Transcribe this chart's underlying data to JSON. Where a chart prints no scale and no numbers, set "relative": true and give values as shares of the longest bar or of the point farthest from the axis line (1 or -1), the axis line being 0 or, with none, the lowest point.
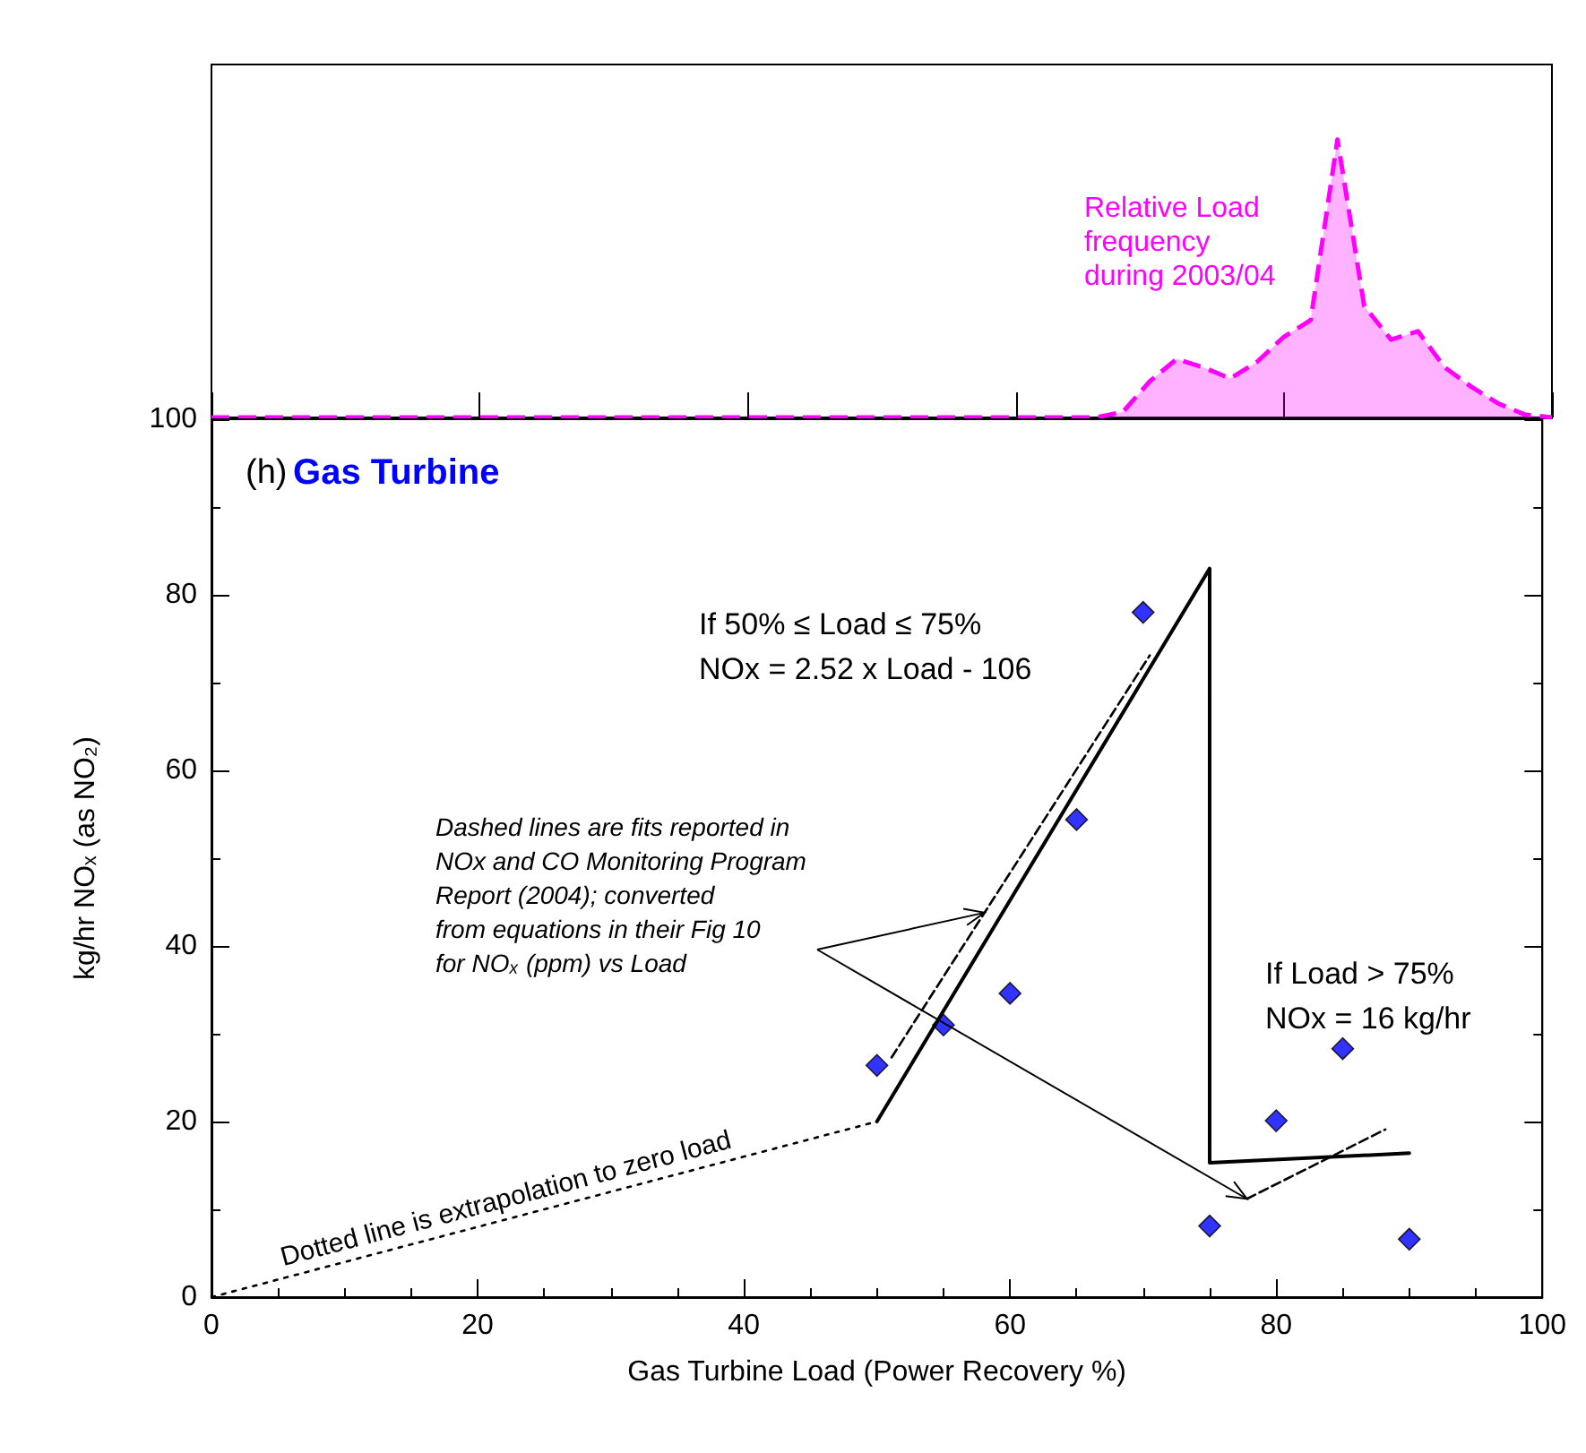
{
  "chart_data": [
    {
      "type": "area",
      "relative": true,
      "categories": [
        null,
        null,
        null,
        null,
        null,
        null,
        null,
        null,
        null,
        null,
        null,
        null,
        null,
        null,
        null,
        null,
        null,
        null,
        null,
        null,
        null,
        null,
        null,
        null,
        null,
        null,
        null,
        null,
        null,
        null,
        null,
        null,
        null,
        null,
        null,
        null,
        null,
        null,
        null,
        null,
        null,
        null,
        null,
        null,
        null,
        null,
        null,
        null,
        null,
        null,
        null
      ],
      "values": [
        0,
        0,
        0,
        0,
        0,
        0,
        0,
        0,
        0,
        0,
        0,
        0,
        0,
        0,
        0,
        0,
        0,
        0,
        0,
        0,
        0,
        0,
        0,
        0,
        0,
        0,
        0,
        0,
        0,
        0,
        0,
        0,
        0,
        0,
        0.02,
        0.13,
        0.21,
        0.18,
        0.14,
        0.2,
        0.29,
        0.35,
        1,
        0.4,
        0.28,
        0.31,
        0.18,
        0.11,
        0.05,
        0.01,
        0
      ],
      "color": "#ff00ff",
      "line_style": "dashed",
      "annotations": [
        "Relative Load\nfrequency\nduring 2003/04"
      ]
    },
    {
      "type": "scatter",
      "title": "(h) Gas Turbine",
      "xlabel": "Gas Turbine Load (Power Recovery %)",
      "ylabel": "kg/hr NOₓ (as NO₂)",
      "xlim": [
        0,
        100
      ],
      "ylim": [
        0,
        100
      ],
      "xticks": [
        0,
        20,
        40,
        60,
        80,
        100
      ],
      "yticks": [
        0,
        20,
        40,
        60,
        80,
        100
      ],
      "marker": "diamond",
      "series": [
        {
          "color": "#0000ff",
          "x": [
            50,
            55,
            60,
            65,
            70,
            75,
            80,
            85,
            90
          ],
          "values": [
            26.4,
            31.0,
            34.6,
            54.4,
            78.0,
            8.1,
            20.1,
            28.3,
            6.6
          ]
        },
        {
          "type": "line",
          "color": "#000000",
          "line_style": "solid",
          "marker": "none",
          "x": [
            50,
            75,
            75,
            90
          ],
          "values": [
            20,
            83,
            15.3,
            16.4
          ]
        },
        {
          "type": "line",
          "color": "#000000",
          "line_style": "dashed",
          "marker": "none",
          "x": [
            51.1,
            70.5
          ],
          "values": [
            27.3,
            73.1
          ]
        },
        {
          "type": "line",
          "color": "#000000",
          "line_style": "dashed",
          "marker": "none",
          "x": [
            77.8,
            88.2
          ],
          "values": [
            11.2,
            19.1
          ]
        },
        {
          "type": "line",
          "color": "#000000",
          "line_style": "dotted",
          "marker": "none",
          "x": [
            0,
            50
          ],
          "values": [
            0,
            20
          ]
        }
      ],
      "annotations": [
        "If 50% ≤ Load ≤ 75%\nNOx = 2.52 x Load - 106",
        "If Load > 75%\nNOx = 16 kg/hr",
        "Dashed lines are fits reported in\nNOx and CO Monitoring Program\nReport (2004); converted\nfrom equations in their Fig 10\nfor NOₓ (ppm) vs Load",
        "Dotted line is extrapolation to zero load"
      ]
    }
  ]
}
